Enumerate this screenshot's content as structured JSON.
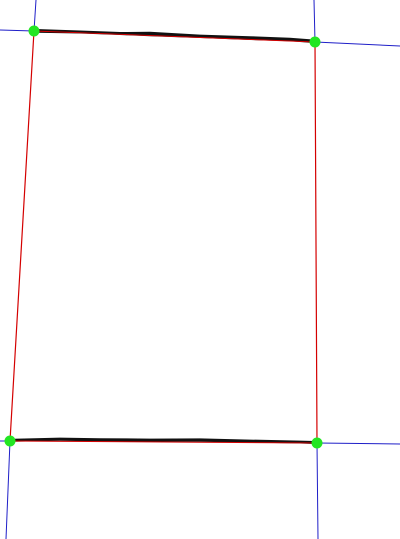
{
  "colors": {
    "background": "#ffffff",
    "guide_line": "#1f1fc8",
    "fit_line": "#d40000",
    "edge_stroke": "#111111",
    "corner_point": "#22e622"
  },
  "corner_names": [
    "top-left",
    "top-right",
    "bottom-right",
    "bottom-left"
  ],
  "icons": {
    "corner_point": "filled-circle"
  }
}
